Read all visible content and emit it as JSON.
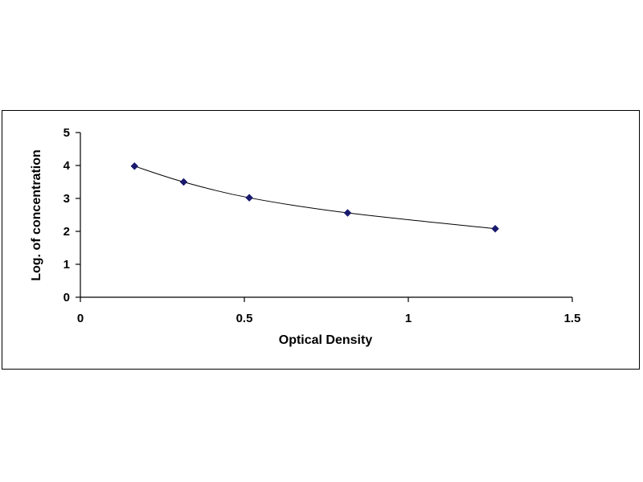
{
  "chart_data": {
    "type": "scatter",
    "xlabel": "Optical Density",
    "ylabel": "Log. of concentration",
    "xlim": [
      0,
      1.5
    ],
    "ylim": [
      0,
      5
    ],
    "x_ticks": [
      "0",
      "0.5",
      "1",
      "1.5"
    ],
    "y_ticks": [
      "0",
      "1",
      "2",
      "3",
      "4",
      "5"
    ],
    "grid": false,
    "trendline": "smooth curve through points",
    "marker": "diamond",
    "colors": {
      "marker": "#1a1a6e",
      "line": "#000000",
      "axis": "#000000"
    },
    "series": [
      {
        "x": [
          0.165,
          0.315,
          0.515,
          0.815,
          1.265
        ],
        "y": [
          3.98,
          3.5,
          3.02,
          2.56,
          2.08
        ]
      }
    ]
  }
}
